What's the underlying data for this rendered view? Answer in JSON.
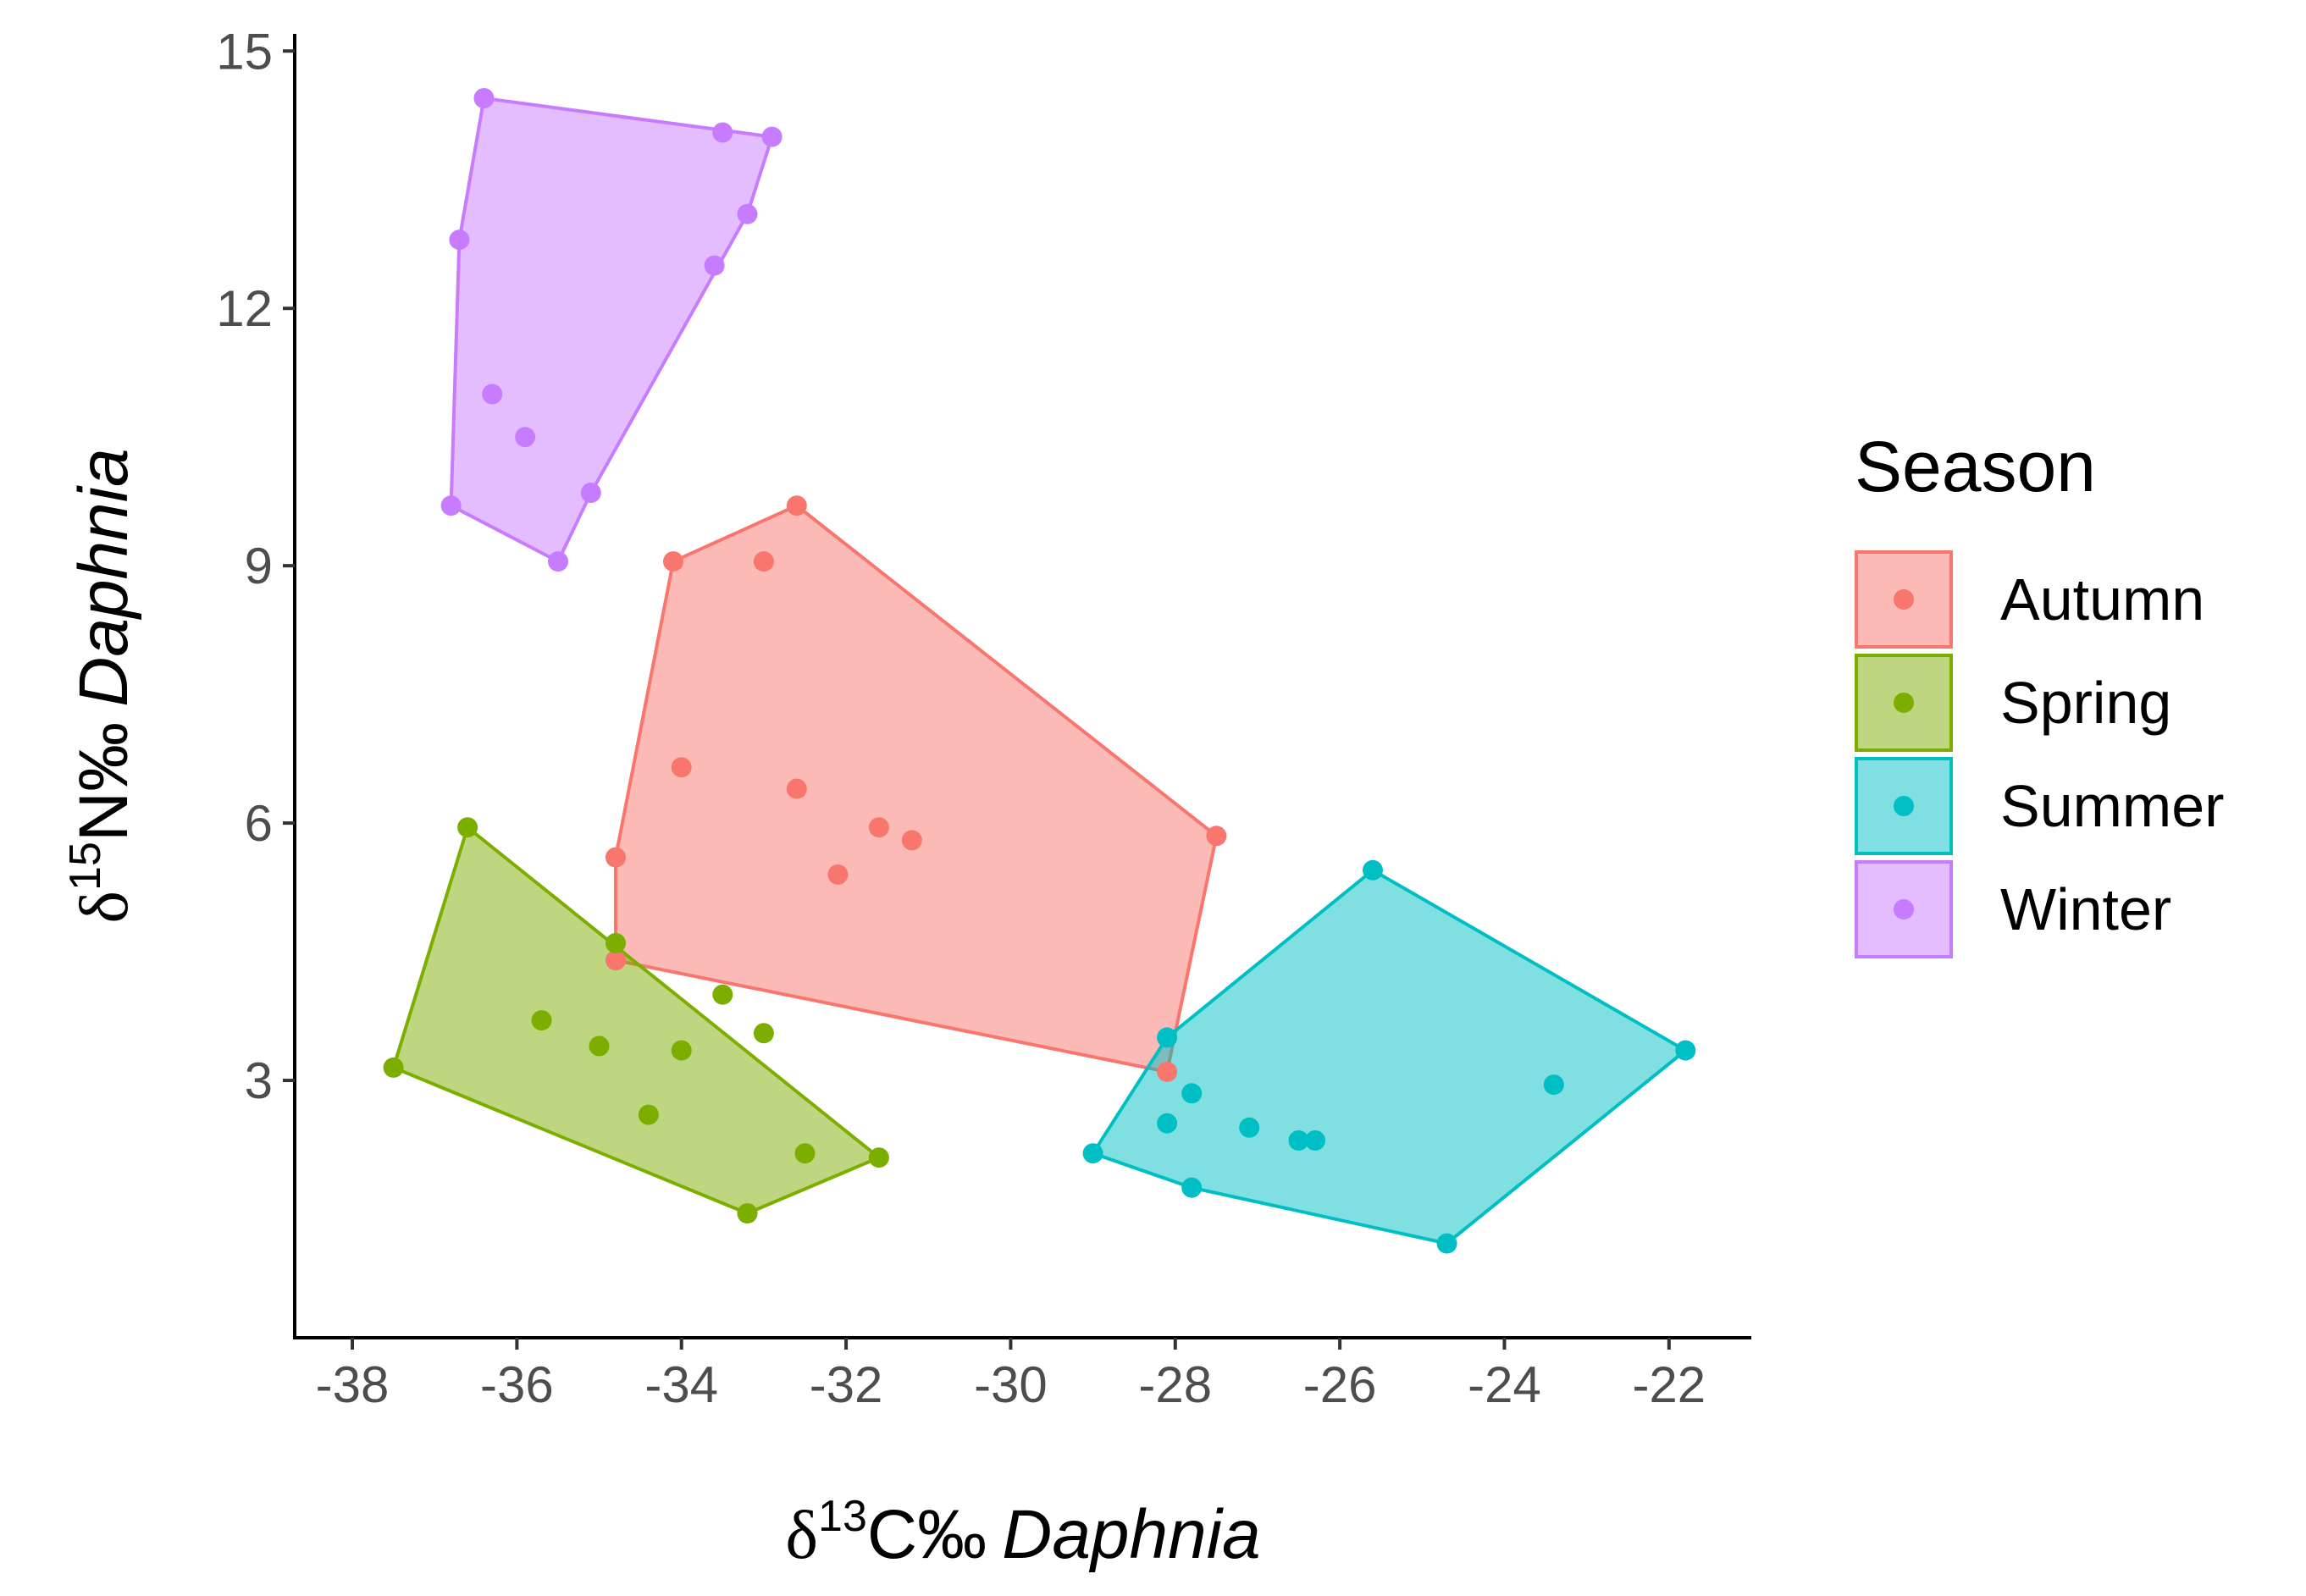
{
  "chart_data": {
    "type": "scatter",
    "title": "",
    "xlabel": {
      "prefix": "δ",
      "superscript": "13",
      "main": "C‰",
      "italic": "Daphnia"
    },
    "ylabel": {
      "prefix": "δ",
      "superscript": "15",
      "main": "N‰",
      "italic": "Daphnia"
    },
    "xlim": [
      -38.7,
      -21.0
    ],
    "ylim": [
      0.0,
      15.2
    ],
    "xticks": [
      -38,
      -36,
      -34,
      -32,
      -30,
      -28,
      -26,
      -24,
      -22
    ],
    "yticks": [
      3,
      6,
      9,
      12,
      15
    ],
    "xtick_labels": [
      "-38",
      "-36",
      "-34",
      "-32",
      "-30",
      "-28",
      "-26",
      "-24",
      "-22"
    ],
    "ytick_labels": [
      "3",
      "6",
      "9",
      "12",
      "15"
    ],
    "grid": false,
    "legend": {
      "title": "Season",
      "position": "right",
      "entries": [
        "Autumn",
        "Spring",
        "Summer",
        "Winter"
      ]
    },
    "series": [
      {
        "name": "Autumn",
        "color": "#F8766D",
        "points": [
          [
            -32.6,
            9.7
          ],
          [
            -34.1,
            9.05
          ],
          [
            -33.0,
            9.05
          ],
          [
            -34.0,
            6.65
          ],
          [
            -32.6,
            6.4
          ],
          [
            -31.6,
            5.95
          ],
          [
            -31.2,
            5.8
          ],
          [
            -27.5,
            5.85
          ],
          [
            -34.8,
            5.6
          ],
          [
            -32.1,
            5.4
          ],
          [
            -34.8,
            4.4
          ],
          [
            -28.1,
            3.1
          ]
        ],
        "hull": [
          [
            -32.6,
            9.7
          ],
          [
            -27.5,
            5.85
          ],
          [
            -28.1,
            3.1
          ],
          [
            -34.8,
            4.4
          ],
          [
            -34.8,
            5.6
          ],
          [
            -34.1,
            9.05
          ]
        ]
      },
      {
        "name": "Spring",
        "color": "#7CAE00",
        "points": [
          [
            -36.6,
            5.95
          ],
          [
            -34.8,
            4.6
          ],
          [
            -33.5,
            4.0
          ],
          [
            -35.7,
            3.7
          ],
          [
            -33.0,
            3.55
          ],
          [
            -35.0,
            3.4
          ],
          [
            -34.0,
            3.35
          ],
          [
            -37.5,
            3.15
          ],
          [
            -34.4,
            2.6
          ],
          [
            -32.5,
            2.15
          ],
          [
            -31.6,
            2.1
          ],
          [
            -33.2,
            1.45
          ]
        ],
        "hull": [
          [
            -36.6,
            5.95
          ],
          [
            -31.6,
            2.1
          ],
          [
            -33.2,
            1.45
          ],
          [
            -37.5,
            3.15
          ]
        ]
      },
      {
        "name": "Summer",
        "color": "#00BFC4",
        "points": [
          [
            -25.6,
            5.45
          ],
          [
            -28.1,
            3.5
          ],
          [
            -21.8,
            3.35
          ],
          [
            -23.4,
            2.95
          ],
          [
            -27.8,
            2.85
          ],
          [
            -27.1,
            2.45
          ],
          [
            -28.1,
            2.5
          ],
          [
            -26.5,
            2.3
          ],
          [
            -26.3,
            2.3
          ],
          [
            -29.0,
            2.15
          ],
          [
            -27.8,
            1.75
          ],
          [
            -24.7,
            1.1
          ]
        ],
        "hull": [
          [
            -25.6,
            5.45
          ],
          [
            -21.8,
            3.35
          ],
          [
            -24.7,
            1.1
          ],
          [
            -27.8,
            1.75
          ],
          [
            -29.0,
            2.15
          ],
          [
            -28.1,
            3.5
          ]
        ]
      },
      {
        "name": "Winter",
        "color": "#C77CFF",
        "points": [
          [
            -36.4,
            14.45
          ],
          [
            -33.5,
            14.05
          ],
          [
            -32.9,
            14.0
          ],
          [
            -33.2,
            13.1
          ],
          [
            -36.7,
            12.8
          ],
          [
            -33.6,
            12.5
          ],
          [
            -36.3,
            11.0
          ],
          [
            -35.9,
            10.5
          ],
          [
            -35.1,
            9.85
          ],
          [
            -36.8,
            9.7
          ],
          [
            -35.5,
            9.05
          ]
        ],
        "hull": [
          [
            -36.4,
            14.45
          ],
          [
            -32.9,
            14.0
          ],
          [
            -33.2,
            13.1
          ],
          [
            -35.1,
            9.85
          ],
          [
            -35.5,
            9.05
          ],
          [
            -36.8,
            9.7
          ],
          [
            -36.7,
            12.8
          ]
        ]
      }
    ]
  }
}
